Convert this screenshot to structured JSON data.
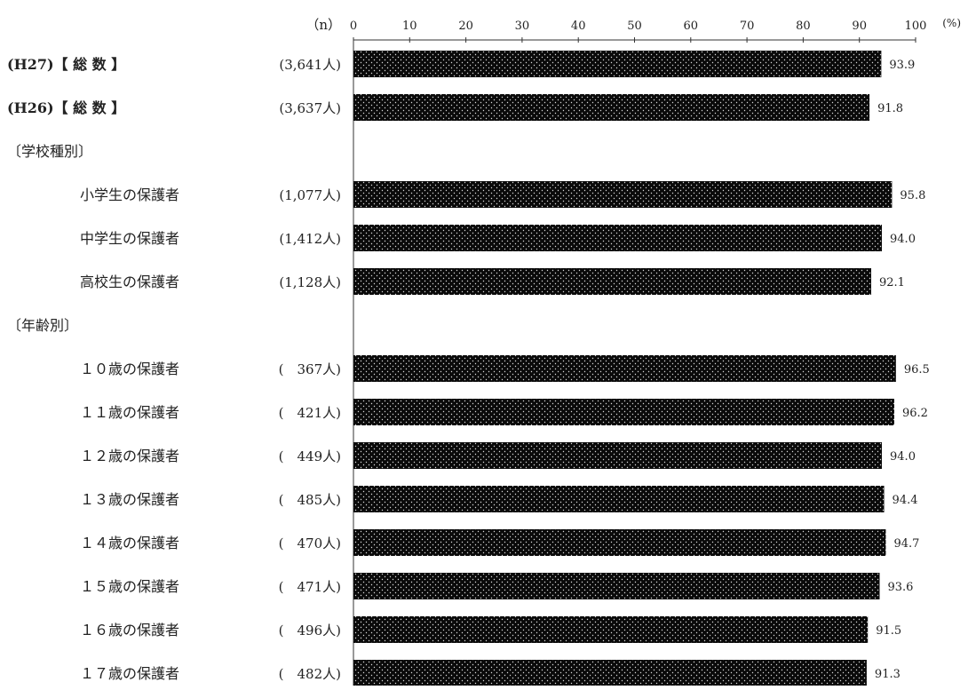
{
  "chart_data": {
    "type": "bar",
    "orientation": "horizontal",
    "n_header": "（n）",
    "unit": "(%)",
    "xlim": [
      0,
      100
    ],
    "ticks": [
      0,
      10,
      20,
      30,
      40,
      50,
      60,
      70,
      80,
      90,
      100
    ],
    "grid": false,
    "bar_color": "#0a0a0a",
    "bar_dot_color": "#d9d9d9",
    "rows": [
      {
        "label": "(H27)【 総 数 】",
        "n": "(3,641人)",
        "value": 93.9,
        "value_label": "93.9",
        "indent": false,
        "heading": false
      },
      {
        "label": "(H26)【 総 数 】",
        "n": "(3,637人)",
        "value": 91.8,
        "value_label": "91.8",
        "indent": false,
        "heading": false
      },
      {
        "label": "〔学校種別〕",
        "n": "",
        "value": null,
        "value_label": "",
        "indent": false,
        "heading": true
      },
      {
        "label": "小学生の保護者",
        "n": "(1,077人)",
        "value": 95.8,
        "value_label": "95.8",
        "indent": true,
        "heading": false
      },
      {
        "label": "中学生の保護者",
        "n": "(1,412人)",
        "value": 94.0,
        "value_label": "94.0",
        "indent": true,
        "heading": false
      },
      {
        "label": "高校生の保護者",
        "n": "(1,128人)",
        "value": 92.1,
        "value_label": "92.1",
        "indent": true,
        "heading": false
      },
      {
        "label": "〔年齢別〕",
        "n": "",
        "value": null,
        "value_label": "",
        "indent": false,
        "heading": true
      },
      {
        "label": "１０歳の保護者",
        "n": "(　367人)",
        "value": 96.5,
        "value_label": "96.5",
        "indent": true,
        "heading": false
      },
      {
        "label": "１１歳の保護者",
        "n": "(　421人)",
        "value": 96.2,
        "value_label": "96.2",
        "indent": true,
        "heading": false
      },
      {
        "label": "１２歳の保護者",
        "n": "(　449人)",
        "value": 94.0,
        "value_label": "94.0",
        "indent": true,
        "heading": false
      },
      {
        "label": "１３歳の保護者",
        "n": "(　485人)",
        "value": 94.4,
        "value_label": "94.4",
        "indent": true,
        "heading": false
      },
      {
        "label": "１４歳の保護者",
        "n": "(　470人)",
        "value": 94.7,
        "value_label": "94.7",
        "indent": true,
        "heading": false
      },
      {
        "label": "１５歳の保護者",
        "n": "(　471人)",
        "value": 93.6,
        "value_label": "93.6",
        "indent": true,
        "heading": false
      },
      {
        "label": "１６歳の保護者",
        "n": "(　496人)",
        "value": 91.5,
        "value_label": "91.5",
        "indent": true,
        "heading": false
      },
      {
        "label": "１７歳の保護者",
        "n": "(　482人)",
        "value": 91.3,
        "value_label": "91.3",
        "indent": true,
        "heading": false
      }
    ]
  }
}
